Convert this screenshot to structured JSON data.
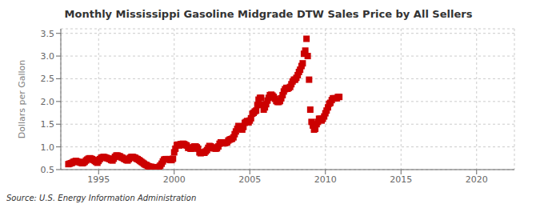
{
  "chart_data": {
    "type": "scatter",
    "title": "Monthly Mississippi Gasoline Midgrade DTW Sales Price by All Sellers",
    "ylabel": "Dollars per Gallon",
    "annotations": [
      "Source: U.S. Energy Information Administration"
    ],
    "color": "#cc0000",
    "marker": "square",
    "grid": true,
    "xlim": [
      1992.5,
      2022.5
    ],
    "ylim": [
      0.5,
      3.6
    ],
    "xticks": [
      1995,
      2000,
      2005,
      2010,
      2015,
      2020
    ],
    "yticks": [
      0.5,
      {
        "value": 1.0,
        "label": "1.0"
      },
      1.5,
      {
        "value": 2.0,
        "label": "2.0"
      },
      2.5,
      {
        "value": 3.0,
        "label": "3.0"
      },
      3.5
    ],
    "x": [
      1993.0,
      1993.08,
      1993.17,
      1993.25,
      1993.33,
      1993.42,
      1993.5,
      1993.58,
      1993.67,
      1993.75,
      1993.83,
      1993.92,
      1994.0,
      1994.08,
      1994.17,
      1994.25,
      1994.33,
      1994.42,
      1994.5,
      1994.58,
      1994.67,
      1994.75,
      1994.83,
      1994.92,
      1995.0,
      1995.08,
      1995.17,
      1995.25,
      1995.33,
      1995.42,
      1995.5,
      1995.58,
      1995.67,
      1995.75,
      1995.83,
      1995.92,
      1996.0,
      1996.08,
      1996.17,
      1996.25,
      1996.33,
      1996.42,
      1996.5,
      1996.58,
      1996.67,
      1996.75,
      1996.83,
      1996.92,
      1997.0,
      1997.08,
      1997.17,
      1997.25,
      1997.33,
      1997.42,
      1997.5,
      1997.58,
      1997.67,
      1997.75,
      1997.83,
      1997.92,
      1998.0,
      1998.08,
      1998.17,
      1998.25,
      1998.33,
      1998.42,
      1998.5,
      1998.58,
      1998.67,
      1998.75,
      1998.83,
      1998.92,
      1999.0,
      1999.08,
      1999.17,
      1999.25,
      1999.33,
      1999.42,
      1999.5,
      1999.58,
      1999.67,
      1999.75,
      1999.83,
      1999.92,
      2000.0,
      2000.08,
      2000.17,
      2000.25,
      2000.33,
      2000.42,
      2000.5,
      2000.58,
      2000.67,
      2000.75,
      2000.83,
      2000.92,
      2001.0,
      2001.08,
      2001.17,
      2001.25,
      2001.33,
      2001.42,
      2001.5,
      2001.58,
      2001.67,
      2001.75,
      2001.83,
      2001.92,
      2002.0,
      2002.08,
      2002.17,
      2002.25,
      2002.33,
      2002.42,
      2002.5,
      2002.58,
      2002.67,
      2002.75,
      2002.83,
      2002.92,
      2003.0,
      2003.08,
      2003.17,
      2003.25,
      2003.33,
      2003.42,
      2003.5,
      2003.58,
      2003.67,
      2003.75,
      2003.83,
      2003.92,
      2004.0,
      2004.08,
      2004.17,
      2004.25,
      2004.33,
      2004.42,
      2004.5,
      2004.58,
      2004.67,
      2004.75,
      2004.83,
      2004.92,
      2005.0,
      2005.08,
      2005.17,
      2005.25,
      2005.33,
      2005.42,
      2005.5,
      2005.58,
      2005.67,
      2005.75,
      2005.83,
      2005.92,
      2006.0,
      2006.08,
      2006.17,
      2006.25,
      2006.33,
      2006.42,
      2006.5,
      2006.58,
      2006.67,
      2006.75,
      2006.83,
      2006.92,
      2007.0,
      2007.08,
      2007.17,
      2007.25,
      2007.33,
      2007.42,
      2007.5,
      2007.58,
      2007.67,
      2007.75,
      2007.83,
      2007.92,
      2008.0,
      2008.08,
      2008.17,
      2008.25,
      2008.33,
      2008.42,
      2008.5,
      2008.58,
      2008.67,
      2008.75,
      2008.83,
      2008.92,
      2009.0,
      2009.08,
      2009.17,
      2009.25,
      2009.33,
      2009.42,
      2009.5,
      2009.58,
      2009.67,
      2009.75,
      2009.83,
      2009.92,
      2010.0,
      2010.08,
      2010.17,
      2010.25,
      2010.33,
      2010.42,
      2010.5,
      2010.58,
      2010.67,
      2010.75,
      2010.83,
      2010.92
    ],
    "values": [
      0.62,
      0.63,
      0.64,
      0.65,
      0.67,
      0.68,
      0.69,
      0.68,
      0.67,
      0.66,
      0.65,
      0.64,
      0.65,
      0.67,
      0.7,
      0.72,
      0.74,
      0.75,
      0.74,
      0.73,
      0.71,
      0.69,
      0.67,
      0.65,
      0.69,
      0.73,
      0.76,
      0.77,
      0.78,
      0.77,
      0.76,
      0.75,
      0.74,
      0.73,
      0.71,
      0.7,
      0.74,
      0.78,
      0.81,
      0.81,
      0.8,
      0.79,
      0.77,
      0.76,
      0.74,
      0.73,
      0.71,
      0.7,
      0.73,
      0.76,
      0.78,
      0.78,
      0.77,
      0.76,
      0.74,
      0.73,
      0.71,
      0.69,
      0.67,
      0.65,
      0.63,
      0.61,
      0.6,
      0.58,
      0.57,
      0.56,
      0.56,
      0.55,
      0.55,
      0.55,
      0.55,
      0.54,
      0.56,
      0.59,
      0.63,
      0.68,
      0.72,
      0.73,
      0.73,
      0.73,
      0.73,
      0.71,
      0.71,
      0.74,
      0.88,
      0.96,
      1.04,
      1.05,
      1.03,
      1.06,
      1.06,
      1.07,
      1.06,
      1.04,
      1.03,
      0.98,
      0.98,
      0.96,
      0.96,
      0.99,
      1.01,
      1.01,
      0.99,
      0.96,
      0.88,
      0.86,
      0.87,
      0.88,
      0.87,
      0.9,
      0.93,
      0.98,
      1.02,
      1.01,
      0.99,
      0.97,
      0.97,
      0.96,
      0.97,
      1.01,
      1.07,
      1.1,
      1.09,
      1.08,
      1.08,
      1.09,
      1.1,
      1.14,
      1.16,
      1.17,
      1.18,
      1.21,
      1.28,
      1.34,
      1.4,
      1.46,
      1.44,
      1.42,
      1.38,
      1.44,
      1.53,
      1.55,
      1.57,
      1.54,
      1.58,
      1.63,
      1.73,
      1.75,
      1.78,
      1.8,
      1.92,
      2.04,
      2.08,
      2.08,
      1.93,
      1.82,
      1.87,
      1.94,
      2.02,
      2.08,
      2.14,
      2.15,
      2.13,
      2.1,
      2.06,
      2.01,
      1.99,
      1.99,
      2.01,
      2.07,
      2.14,
      2.22,
      2.27,
      2.3,
      2.28,
      2.3,
      2.32,
      2.38,
      2.44,
      2.48,
      2.48,
      2.52,
      2.58,
      2.65,
      2.7,
      2.78,
      2.84,
      3.05,
      3.12,
      3.38,
      3.0,
      2.48,
      1.82,
      1.55,
      1.47,
      1.38,
      1.4,
      1.5,
      1.55,
      1.62,
      1.62,
      1.58,
      1.62,
      1.67,
      1.74,
      1.8,
      1.87,
      1.95,
      1.97,
      2.03,
      2.07,
      2.07,
      2.07,
      2.07,
      2.1,
      2.1
    ]
  }
}
